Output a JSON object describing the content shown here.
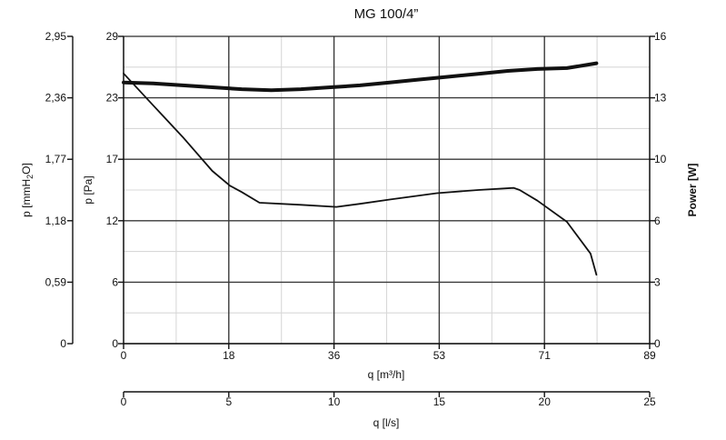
{
  "chart_data": {
    "type": "line",
    "title": "MG 100/4”",
    "x_axis_primary": {
      "label": "q [m³/h]",
      "range": [
        0,
        89
      ],
      "ticks": [
        "0",
        "18",
        "36",
        "53",
        "71",
        "89"
      ]
    },
    "x_axis_secondary": {
      "label": "q [l/s]",
      "range": [
        0,
        25
      ],
      "ticks": [
        "0",
        "5",
        "10",
        "15",
        "20",
        "25"
      ]
    },
    "y_axis_pressure_pa": {
      "label": "p [Pa]",
      "range": [
        0,
        29
      ],
      "ticks": [
        "0",
        "6",
        "12",
        "17",
        "23",
        "29"
      ]
    },
    "y_axis_pressure_mmh2o": {
      "label_main": "p [mmH",
      "label_sub": "2",
      "label_end": "O]",
      "range": [
        0,
        2.95
      ],
      "ticks": [
        "0",
        "0,59",
        "1,18",
        "1,77",
        "2,36",
        "2,95"
      ]
    },
    "y_axis_power": {
      "label": "Power [W]",
      "range": [
        0,
        16
      ],
      "ticks": [
        "0",
        "3",
        "6",
        "10",
        "13",
        "16"
      ]
    },
    "grid": true,
    "series": [
      {
        "axis": "power",
        "x": [
          0,
          5,
          10,
          15,
          20,
          25,
          30,
          35,
          40,
          45,
          50,
          55,
          60,
          65,
          70,
          75,
          80
        ],
        "y": [
          13.6,
          13.55,
          13.45,
          13.35,
          13.25,
          13.2,
          13.25,
          13.35,
          13.45,
          13.6,
          13.75,
          13.9,
          14.05,
          14.2,
          14.3,
          14.35,
          14.6
        ]
      },
      {
        "axis": "pressure_pa",
        "x": [
          0,
          5,
          10,
          15,
          18,
          20,
          23,
          30,
          36,
          40,
          45,
          53,
          60,
          66,
          67,
          70,
          75,
          79,
          80
        ],
        "y": [
          25.5,
          22.5,
          19.5,
          16.3,
          14.9,
          14.3,
          13.3,
          13.1,
          12.9,
          13.2,
          13.6,
          14.2,
          14.5,
          14.7,
          14.5,
          13.5,
          11.5,
          8.5,
          6.5
        ]
      }
    ]
  }
}
